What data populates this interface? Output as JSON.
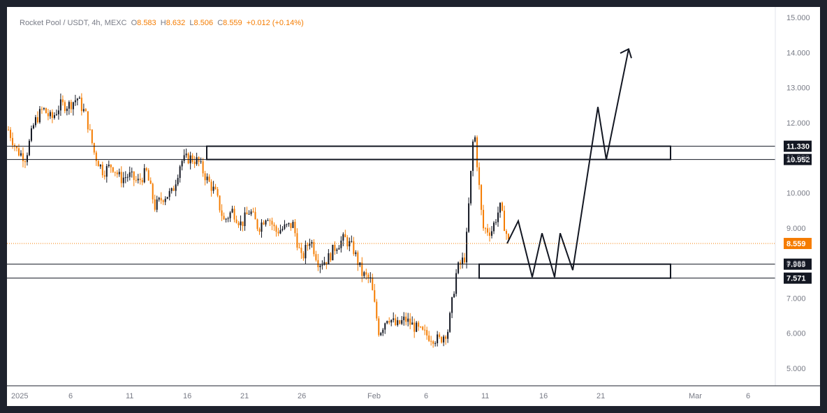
{
  "legend": {
    "symbol": "Rocket Pool / USDT, 4h, MEXC",
    "o_key": "O",
    "o_val": "8.583",
    "h_key": "H",
    "h_val": "8.632",
    "l_key": "L",
    "l_val": "8.506",
    "c_key": "C",
    "c_val": "8.559",
    "change": "+0.012 (+0.14%)"
  },
  "colors": {
    "up": "#131722",
    "down": "#f57c00",
    "accent": "#f57c00",
    "text": "#787b86",
    "border": "#1e222d"
  },
  "chart_data": {
    "type": "candlestick",
    "title": "Rocket Pool / USDT, 4h, MEXC",
    "ylim": [
      4.5,
      15.5
    ],
    "y_ticks": [
      "15.000",
      "14.000",
      "13.000",
      "12.000",
      "11.000",
      "10.000",
      "9.000",
      "8.000",
      "7.000",
      "6.000",
      "5.000"
    ],
    "x_ticks": [
      "2025",
      "6",
      "11",
      "16",
      "21",
      "26",
      "Feb",
      "6",
      "11",
      "16",
      "21",
      "Mar",
      "6"
    ],
    "last_price": "8.559",
    "resistance_zone": {
      "upper": "11.330",
      "lower": "10.952"
    },
    "support_zone": {
      "upper": "7.969",
      "lower": "7.571"
    },
    "close_path": [
      11.8,
      11.2,
      11.0,
      12.0,
      12.4,
      12.1,
      12.5,
      12.5,
      12.7,
      12.2,
      11.1,
      10.6,
      10.8,
      10.4,
      10.5,
      10.3,
      10.6,
      9.6,
      9.9,
      10.0,
      10.9,
      11.0,
      10.9,
      10.4,
      10.0,
      9.2,
      9.5,
      9.1,
      9.5,
      9.0,
      9.4,
      8.9,
      9.0,
      9.1,
      8.1,
      8.7,
      8.0,
      8.1,
      8.5,
      8.7,
      8.4,
      7.7,
      7.5,
      6.0,
      6.5,
      6.2,
      6.4,
      6.2,
      6.0,
      5.9,
      5.8,
      6.1,
      7.8,
      8.2,
      11.9,
      9.0,
      8.9,
      9.6,
      8.6
    ],
    "projection_path": [
      [
        8.56,
        9.2
      ],
      [
        7.6,
        8.85
      ],
      [
        7.6,
        8.85
      ],
      [
        7.8,
        12.45
      ],
      [
        10.95,
        14.1
      ]
    ]
  }
}
